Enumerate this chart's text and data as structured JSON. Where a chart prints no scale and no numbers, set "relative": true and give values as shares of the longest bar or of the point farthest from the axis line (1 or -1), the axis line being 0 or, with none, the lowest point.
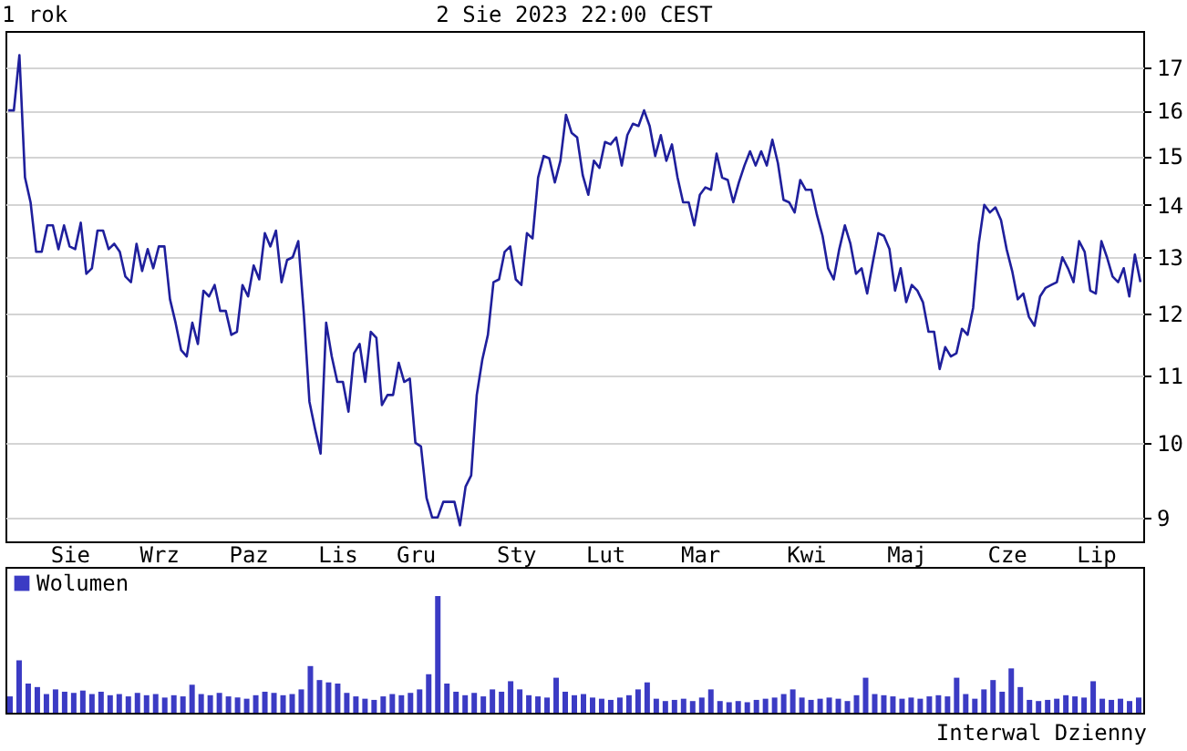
{
  "chart_data": [
    {
      "type": "line",
      "title": "1 rok",
      "annotations": [
        "2 Sie 2023 22:00 CEST"
      ],
      "log": true,
      "grid": "y",
      "line_style": "solid",
      "ylim": [
        8.7,
        17.9
      ],
      "yticks": [
        9,
        10,
        11,
        12,
        13,
        14,
        15,
        16,
        17
      ],
      "categories": [
        null,
        null,
        null,
        null,
        null,
        null,
        null,
        null,
        null,
        null,
        null,
        "Sie",
        null,
        null,
        null,
        null,
        null,
        null,
        null,
        null,
        null,
        null,
        null,
        null,
        null,
        null,
        null,
        "Wrz",
        null,
        null,
        null,
        null,
        null,
        null,
        null,
        null,
        null,
        null,
        null,
        null,
        null,
        null,
        null,
        "Paz",
        null,
        null,
        null,
        null,
        null,
        null,
        null,
        null,
        null,
        null,
        null,
        null,
        null,
        null,
        null,
        "Lis",
        null,
        null,
        null,
        null,
        null,
        null,
        null,
        null,
        null,
        null,
        null,
        null,
        null,
        "Gru",
        null,
        null,
        null,
        null,
        null,
        null,
        null,
        null,
        null,
        null,
        null,
        null,
        null,
        null,
        null,
        null,
        null,
        "Sty",
        null,
        null,
        null,
        null,
        null,
        null,
        null,
        null,
        null,
        null,
        null,
        null,
        null,
        null,
        null,
        "Lut",
        null,
        null,
        null,
        null,
        null,
        null,
        null,
        null,
        null,
        null,
        null,
        null,
        null,
        null,
        null,
        null,
        "Mar",
        null,
        null,
        null,
        null,
        null,
        null,
        null,
        null,
        null,
        null,
        null,
        null,
        null,
        null,
        null,
        null,
        null,
        null,
        "Kwi",
        null,
        null,
        null,
        null,
        null,
        null,
        null,
        null,
        null,
        null,
        null,
        null,
        null,
        null,
        null,
        null,
        null,
        "Maj",
        null,
        null,
        null,
        null,
        null,
        null,
        null,
        null,
        null,
        null,
        null,
        null,
        null,
        null,
        null,
        null,
        null,
        "Cze",
        null,
        null,
        null,
        null,
        null,
        null,
        null,
        null,
        null,
        null,
        null,
        null,
        null,
        null,
        null,
        "Lip",
        null,
        null,
        null,
        null,
        null,
        null,
        null,
        null
      ],
      "series": [
        {
          "color": "#1f1f9c",
          "values": [
            16.0,
            16.0,
            17.3,
            14.55,
            14.05,
            13.1,
            13.1,
            13.6,
            13.6,
            13.15,
            13.6,
            13.2,
            13.15,
            13.65,
            12.7,
            12.8,
            13.5,
            13.5,
            13.15,
            13.25,
            13.1,
            12.65,
            12.55,
            13.25,
            12.75,
            13.15,
            12.8,
            13.2,
            13.2,
            12.25,
            11.85,
            11.4,
            11.3,
            11.85,
            11.5,
            12.4,
            12.3,
            12.5,
            12.05,
            12.05,
            11.65,
            11.7,
            12.5,
            12.3,
            12.85,
            12.6,
            13.45,
            13.2,
            13.5,
            12.55,
            12.95,
            13.0,
            13.3,
            12.0,
            10.6,
            10.2,
            9.85,
            11.85,
            11.3,
            10.9,
            10.9,
            10.45,
            11.35,
            11.5,
            10.9,
            11.7,
            11.6,
            10.55,
            10.7,
            10.7,
            11.2,
            10.9,
            10.95,
            10.0,
            9.95,
            9.25,
            9.0,
            9.0,
            9.2,
            9.2,
            9.2,
            8.9,
            9.4,
            9.55,
            10.7,
            11.25,
            11.65,
            12.55,
            12.6,
            13.1,
            13.2,
            12.6,
            12.5,
            13.45,
            13.35,
            14.55,
            15.0,
            14.95,
            14.45,
            14.9,
            15.9,
            15.5,
            15.4,
            14.6,
            14.2,
            14.9,
            14.75,
            15.3,
            15.25,
            15.4,
            14.8,
            15.45,
            15.7,
            15.65,
            16.0,
            15.65,
            15.0,
            15.45,
            14.9,
            15.25,
            14.55,
            14.05,
            14.05,
            13.6,
            14.2,
            14.35,
            14.3,
            15.05,
            14.55,
            14.5,
            14.05,
            14.45,
            14.8,
            15.1,
            14.8,
            15.1,
            14.8,
            15.35,
            14.85,
            14.1,
            14.05,
            13.85,
            14.5,
            14.3,
            14.3,
            13.8,
            13.4,
            12.8,
            12.6,
            13.15,
            13.6,
            13.25,
            12.7,
            12.8,
            12.35,
            12.9,
            13.45,
            13.4,
            13.15,
            12.4,
            12.8,
            12.2,
            12.5,
            12.4,
            12.2,
            11.7,
            11.7,
            11.1,
            11.45,
            11.3,
            11.35,
            11.75,
            11.65,
            12.1,
            13.25,
            14.0,
            13.85,
            13.95,
            13.7,
            13.15,
            12.75,
            12.25,
            12.35,
            11.95,
            11.8,
            12.3,
            12.45,
            12.5,
            12.55,
            13.0,
            12.8,
            12.55,
            13.3,
            13.1,
            12.4,
            12.35,
            13.3,
            13.0,
            12.65,
            12.55,
            12.8,
            12.3,
            13.05,
            12.55
          ]
        }
      ]
    },
    {
      "type": "bar",
      "relative": true,
      "legend": "top left",
      "annotations": [
        "Interwal Dzienny"
      ],
      "categories": [
        null,
        null,
        null,
        null,
        null,
        null,
        null,
        null,
        null,
        null,
        null,
        null,
        null,
        null,
        null,
        null,
        null,
        null,
        null,
        null,
        null,
        null,
        null,
        null,
        null,
        null,
        null,
        null,
        null,
        null,
        null,
        null,
        null,
        null,
        null,
        null,
        null,
        null,
        null,
        null,
        null,
        null,
        null,
        null,
        null,
        null,
        null,
        null,
        null,
        null,
        null,
        null,
        null,
        null,
        null,
        null,
        null,
        null,
        null,
        null,
        null,
        null,
        null,
        null,
        null,
        null,
        null,
        null,
        null,
        null,
        null,
        null,
        null,
        null,
        null,
        null,
        null,
        null,
        null,
        null,
        null,
        null,
        null,
        null,
        null,
        null,
        null,
        null,
        null,
        null,
        null,
        null,
        null,
        null,
        null,
        null,
        null,
        null,
        null,
        null,
        null,
        null,
        null,
        null,
        null,
        null,
        null,
        null,
        null,
        null,
        null,
        null,
        null,
        null,
        null,
        null,
        null,
        null,
        null,
        null,
        null,
        null,
        null,
        null,
        null
      ],
      "series": [
        {
          "name": "Wolumen",
          "color": "#3b3bc4",
          "values": [
            0.14,
            0.45,
            0.25,
            0.22,
            0.16,
            0.2,
            0.18,
            0.17,
            0.19,
            0.16,
            0.18,
            0.15,
            0.16,
            0.14,
            0.17,
            0.15,
            0.16,
            0.13,
            0.15,
            0.14,
            0.24,
            0.16,
            0.15,
            0.17,
            0.14,
            0.13,
            0.12,
            0.15,
            0.18,
            0.17,
            0.15,
            0.16,
            0.2,
            0.4,
            0.28,
            0.26,
            0.25,
            0.17,
            0.14,
            0.12,
            0.11,
            0.14,
            0.16,
            0.15,
            0.17,
            0.2,
            0.33,
            1.0,
            0.25,
            0.18,
            0.15,
            0.17,
            0.14,
            0.2,
            0.18,
            0.27,
            0.2,
            0.15,
            0.14,
            0.13,
            0.3,
            0.18,
            0.15,
            0.16,
            0.13,
            0.12,
            0.11,
            0.13,
            0.15,
            0.2,
            0.26,
            0.12,
            0.1,
            0.11,
            0.12,
            0.1,
            0.13,
            0.2,
            0.1,
            0.09,
            0.1,
            0.09,
            0.11,
            0.12,
            0.13,
            0.16,
            0.2,
            0.13,
            0.11,
            0.12,
            0.13,
            0.12,
            0.1,
            0.15,
            0.3,
            0.16,
            0.15,
            0.14,
            0.12,
            0.13,
            0.12,
            0.14,
            0.15,
            0.14,
            0.3,
            0.16,
            0.12,
            0.2,
            0.28,
            0.18,
            0.38,
            0.22,
            0.11,
            0.1,
            0.11,
            0.12,
            0.15,
            0.14,
            0.13,
            0.27,
            0.12,
            0.11,
            0.12,
            0.1,
            0.13
          ]
        }
      ]
    }
  ]
}
